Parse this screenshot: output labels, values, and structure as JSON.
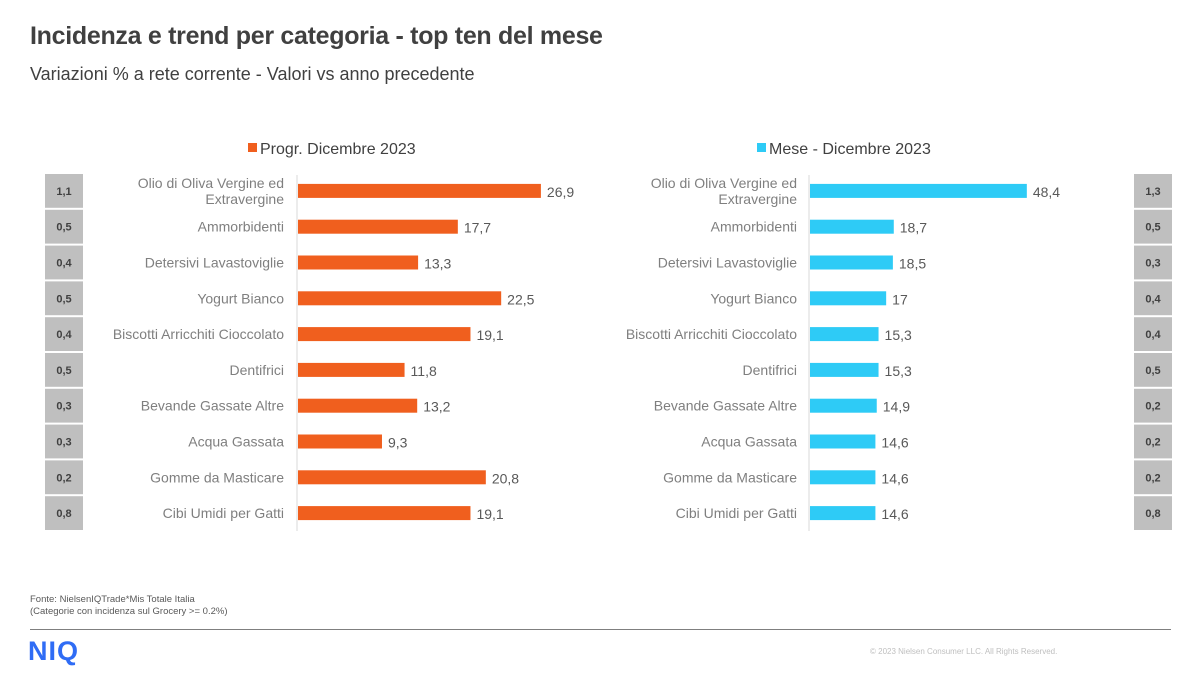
{
  "header": {
    "title": "Incidenza e trend per categoria - top ten del mese",
    "subtitle": "Variazioni  % a rete corrente - Valori vs anno precedente"
  },
  "chart_data": [
    {
      "type": "bar",
      "orientation": "horizontal",
      "legend": "Progr. Dicembre 2023",
      "legend_position": "top",
      "color": "#f05f1e",
      "categories": [
        "Olio di Oliva Vergine ed Extravergine",
        "Ammorbidenti",
        "Detersivi Lavastoviglie",
        "Yogurt Bianco",
        "Biscotti Arricchiti Cioccolato",
        "Dentifrici",
        "Bevande Gassate Altre",
        "Acqua Gassata",
        "Gomme da Masticare",
        "Cibi Umidi per Gatti"
      ],
      "category_lines": [
        [
          "Olio di Oliva Vergine ed",
          "Extravergine"
        ],
        [
          "Ammorbidenti"
        ],
        [
          "Detersivi Lavastoviglie"
        ],
        [
          "Yogurt Bianco"
        ],
        [
          "Biscotti Arricchiti Cioccolato"
        ],
        [
          "Dentifrici"
        ],
        [
          "Bevande Gassate Altre"
        ],
        [
          "Acqua Gassata"
        ],
        [
          "Gomme da Masticare"
        ],
        [
          "Cibi Umidi per Gatti"
        ]
      ],
      "values": [
        26.9,
        17.7,
        13.3,
        22.5,
        19.1,
        11.8,
        13.2,
        9.3,
        20.8,
        19.1
      ],
      "value_labels": [
        "26,9",
        "17,7",
        "13,3",
        "22,5",
        "19,1",
        "11,8",
        "13,2",
        "9,3",
        "20,8",
        "19,1"
      ],
      "side_boxes": [
        "1,1",
        "0,5",
        "0,4",
        "0,5",
        "0,4",
        "0,5",
        "0,3",
        "0,3",
        "0,2",
        "0,8"
      ],
      "side_boxes_position": "left",
      "xlim": [
        0,
        30
      ],
      "xlabel": "",
      "ylabel": "",
      "grid": false
    },
    {
      "type": "bar",
      "orientation": "horizontal",
      "legend": "Mese - Dicembre 2023",
      "legend_position": "top",
      "color": "#2ecbf6",
      "categories": [
        "Olio di Oliva Vergine ed Extravergine",
        "Ammorbidenti",
        "Detersivi Lavastoviglie",
        "Yogurt Bianco",
        "Biscotti Arricchiti Cioccolato",
        "Dentifrici",
        "Bevande Gassate Altre",
        "Acqua Gassata",
        "Gomme da Masticare",
        "Cibi Umidi per Gatti"
      ],
      "category_lines": [
        [
          "Olio di Oliva Vergine ed",
          "Extravergine"
        ],
        [
          "Ammorbidenti"
        ],
        [
          "Detersivi Lavastoviglie"
        ],
        [
          "Yogurt Bianco"
        ],
        [
          "Biscotti Arricchiti Cioccolato"
        ],
        [
          "Dentifrici"
        ],
        [
          "Bevande Gassate Altre"
        ],
        [
          "Acqua Gassata"
        ],
        [
          "Gomme da Masticare"
        ],
        [
          "Cibi Umidi per Gatti"
        ]
      ],
      "values": [
        48.4,
        18.7,
        18.5,
        17,
        15.3,
        15.3,
        14.9,
        14.6,
        14.6,
        14.6
      ],
      "value_labels": [
        "48,4",
        "18,7",
        "18,5",
        "17",
        "15,3",
        "15,3",
        "14,9",
        "14,6",
        "14,6",
        "14,6"
      ],
      "side_boxes": [
        "1,3",
        "0,5",
        "0,3",
        "0,4",
        "0,4",
        "0,5",
        "0,2",
        "0,2",
        "0,2",
        "0,8"
      ],
      "side_boxes_position": "right",
      "xlim": [
        0,
        60
      ],
      "xlabel": "",
      "ylabel": "",
      "grid": false
    }
  ],
  "footer": {
    "source_line1": "Fonte: NielsenIQTrade*Mis  Totale Italia",
    "source_line2": "(Categorie con incidenza sul Grocery >= 0.2%)",
    "logo": "NIQ",
    "copyright": "© 2023  Nielsen Consumer LLC. All Rights Reserved."
  }
}
